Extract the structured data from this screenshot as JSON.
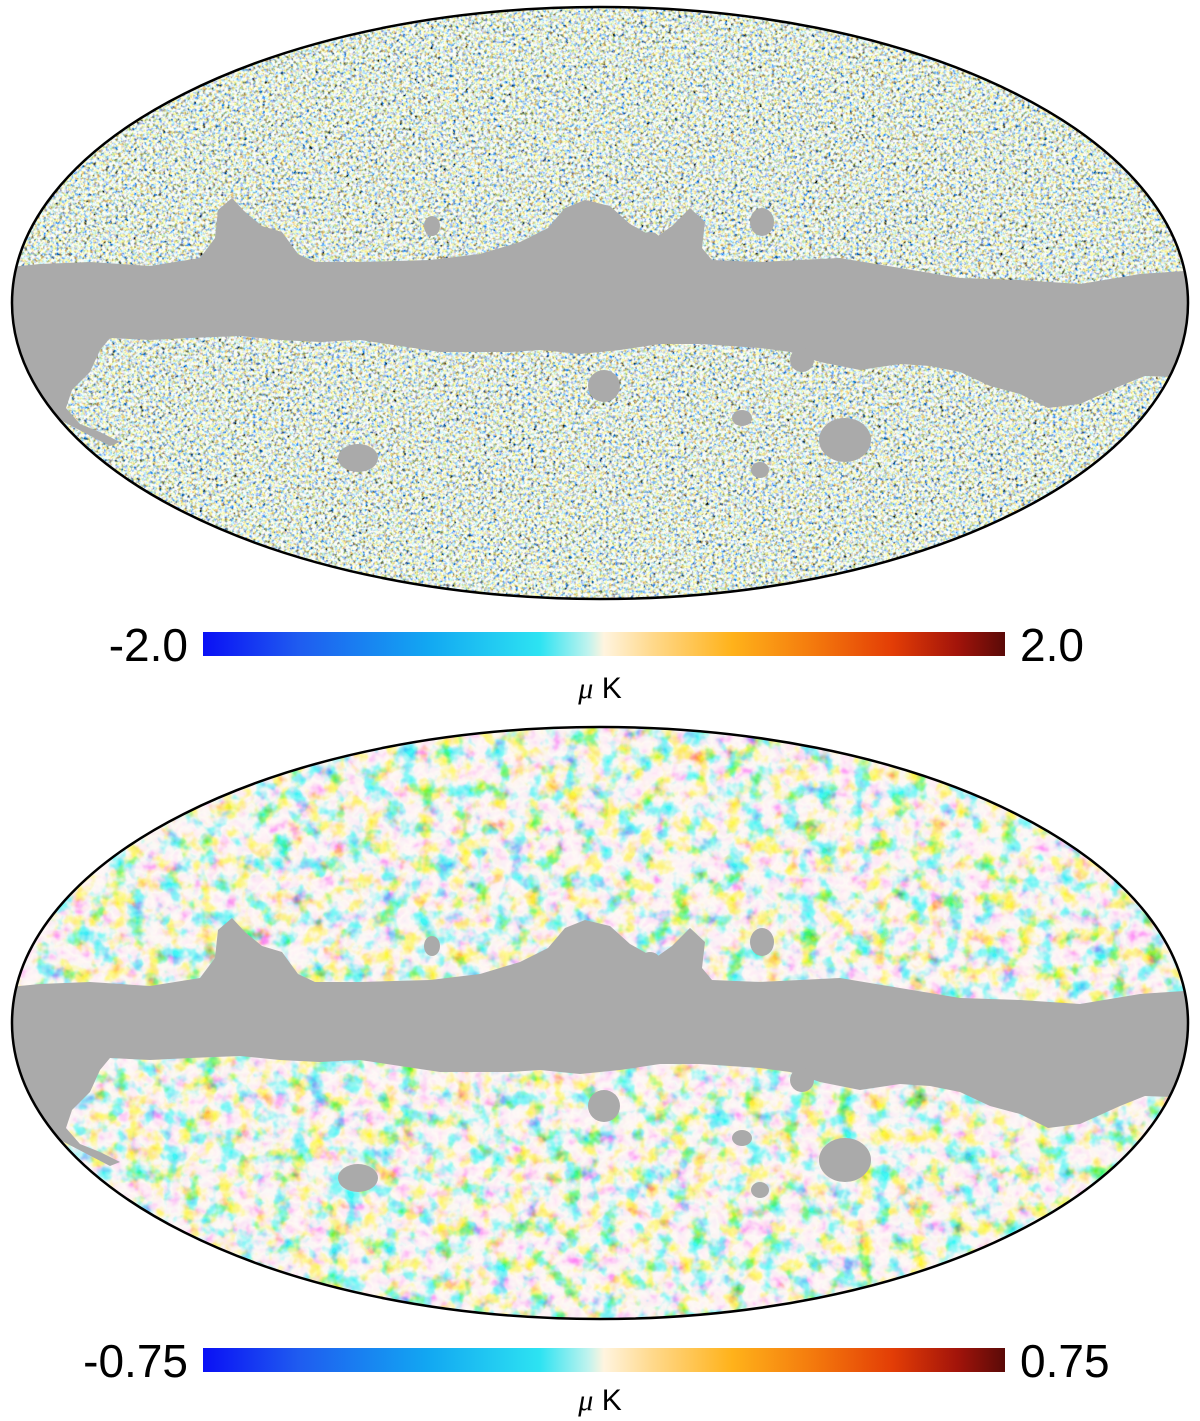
{
  "figure": {
    "panels": [
      {
        "id": "top",
        "colorbar": {
          "min_label": "-2.0",
          "max_label": "2.0",
          "unit_symbol": "μ",
          "unit_letter": "K"
        },
        "mask_color": "#aaaaaa"
      },
      {
        "id": "bottom",
        "colorbar": {
          "min_label": "-0.75",
          "max_label": "0.75",
          "unit_symbol": "μ",
          "unit_letter": "K"
        },
        "mask_color": "#aaaaaa"
      }
    ],
    "colormap": [
      "#0a10f5",
      "#1f5cf0",
      "#12a7f2",
      "#2de3f2",
      "#fff4df",
      "#ffd98c",
      "#ffb21a",
      "#f47a0d",
      "#e33d06",
      "#a3140a",
      "#5a0a08"
    ]
  }
}
